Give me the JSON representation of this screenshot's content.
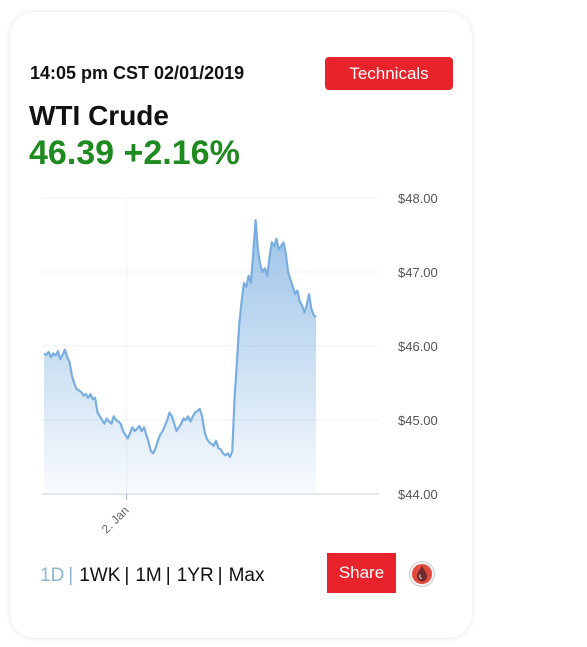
{
  "header": {
    "timestamp": "14:05 pm CST 02/01/2019",
    "technicals_label": "Technicals"
  },
  "instrument": {
    "name": "WTI Crude",
    "price": "46.39",
    "change": "+2.16%"
  },
  "colors": {
    "accent_red": "#e8232b",
    "price_green": "#1f8a1f",
    "line_blue": "#7aaee0",
    "active_range": "#8fb6cf"
  },
  "chart_data": {
    "type": "area",
    "title": "",
    "xlabel": "",
    "ylabel": "",
    "ylim": [
      44,
      48
    ],
    "y_ticks": [
      "$48.00",
      "$47.00",
      "$46.00",
      "$45.00",
      "$44.00"
    ],
    "y_tick_values": [
      48,
      47,
      46,
      45,
      44
    ],
    "y_axis_position": "right",
    "x_tick_labels": [
      "2. Jan"
    ],
    "x_tick_positions": [
      0.27
    ],
    "grid": true,
    "series": [
      {
        "values": [
          45.9,
          45.88,
          45.92,
          45.85,
          45.9,
          45.87,
          45.93,
          45.82,
          45.88,
          45.95,
          45.85,
          45.78,
          45.6,
          45.5,
          45.42,
          45.4,
          45.38,
          45.33,
          45.35,
          45.3,
          45.35,
          45.28,
          45.3,
          45.1,
          45.05,
          45.0,
          44.95,
          45.02,
          44.98,
          44.95,
          45.05,
          45.0,
          44.98,
          44.95,
          44.85,
          44.8,
          44.75,
          44.82,
          44.9,
          44.85,
          44.88,
          44.92,
          44.85,
          44.9,
          44.8,
          44.7,
          44.58,
          44.55,
          44.62,
          44.72,
          44.8,
          44.85,
          44.92,
          45.0,
          45.1,
          45.05,
          44.95,
          44.85,
          44.9,
          44.95,
          45.02,
          45.0,
          45.05,
          44.98,
          45.05,
          45.1,
          45.12,
          45.15,
          45.05,
          44.85,
          44.75,
          44.7,
          44.68,
          44.65,
          44.72,
          44.62,
          44.6,
          44.55,
          44.52,
          44.55,
          44.5,
          44.58,
          45.3,
          45.8,
          46.3,
          46.6,
          46.85,
          46.8,
          46.95,
          46.85,
          47.25,
          47.7,
          47.3,
          47.1,
          47.0,
          47.05,
          46.95,
          47.2,
          47.4,
          47.35,
          47.45,
          47.3,
          47.35,
          47.4,
          47.25,
          47.0,
          46.9,
          46.8,
          46.7,
          46.75,
          46.6,
          46.55,
          46.45,
          46.55,
          46.7,
          46.5,
          46.42,
          46.39
        ]
      }
    ]
  },
  "range_bar": {
    "items": [
      {
        "label": "1D",
        "active": true
      },
      {
        "label": "1WK",
        "active": false
      },
      {
        "label": "1M",
        "active": false
      },
      {
        "label": "1YR",
        "active": false
      },
      {
        "label": "Max",
        "active": false
      }
    ],
    "separator": "|"
  },
  "share_label": "Share",
  "icons": {
    "oil_drop": "oil-drop-icon"
  }
}
